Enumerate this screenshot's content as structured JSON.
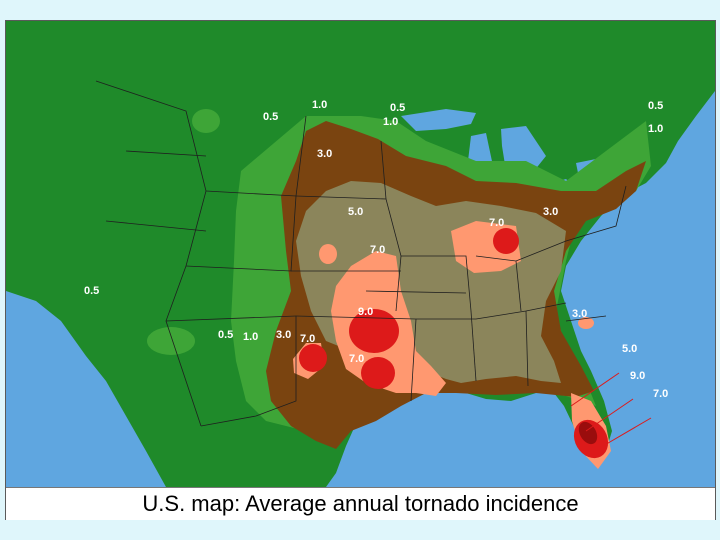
{
  "caption": "U.S. map: Average annual tornado incidence",
  "labels": {
    "l1": "1.0",
    "l2": "0.5",
    "l3": "0.5",
    "l4": "1.0",
    "l5": "0.5",
    "l6": "1.0",
    "l7": "3.0",
    "l8": "5.0",
    "l9": "7.0",
    "l10": "3.0",
    "l11": "7.0",
    "l12": "0.5",
    "l13": "9.0",
    "l14": "3.0",
    "l15": "0.5",
    "l16": "1.0",
    "l17": "3.0",
    "l18": "7.0",
    "l19": "7.0",
    "l20": "5.0",
    "l21": "9.0",
    "l22": "7.0"
  },
  "colors": {
    "ocean": "#5fa6e0",
    "land_low": "#1f8a2a",
    "band_1": "#3ea537",
    "band_3": "#7a4410",
    "band_5": "#8b855b",
    "band_7": "#ff9870",
    "band_9": "#dd1a1a"
  }
}
